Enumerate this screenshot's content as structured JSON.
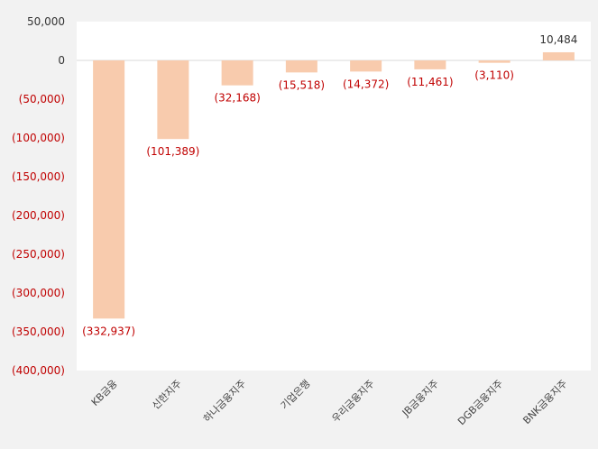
{
  "colors": {
    "background": "#f2f2f2",
    "plot_background": "#ffffff",
    "bar": "#f8cbad",
    "negative_text": "#c00000",
    "positive_text": "#333333",
    "zero_line": "#d9d9d9"
  },
  "chart_data": {
    "type": "bar",
    "title": "",
    "xlabel": "",
    "ylabel": "",
    "ylim": [
      -400000,
      50000
    ],
    "grid": false,
    "legend": "none",
    "categories": [
      "KB금융",
      "신한지주",
      "하나금융지주",
      "기업은행",
      "우리금융지주",
      "JB금융지주",
      "DGB금융지주",
      "BNK금융지주"
    ],
    "values": [
      -332937,
      -101389,
      -32168,
      -15518,
      -14372,
      -11461,
      -3110,
      10484
    ],
    "value_labels": [
      "(332,937)",
      "(101,389)",
      "(32,168)",
      "(15,518)",
      "(14,372)",
      "(11,461)",
      "(3,110)",
      "10,484"
    ],
    "y_ticks": [
      50000,
      0,
      -50000,
      -100000,
      -150000,
      -200000,
      -250000,
      -300000,
      -350000,
      -400000
    ],
    "y_tick_labels": [
      "50,000",
      "0",
      "(50,000)",
      "(100,000)",
      "(150,000)",
      "(200,000)",
      "(250,000)",
      "(300,000)",
      "(350,000)",
      "(400,000)"
    ]
  }
}
